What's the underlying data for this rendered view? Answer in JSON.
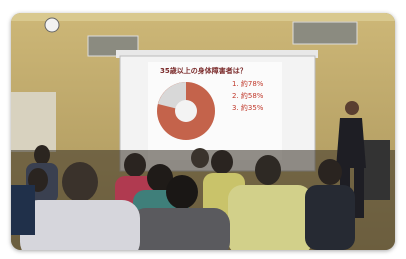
{
  "slide": {
    "title": "35歳以上の身体障害者は？",
    "options": [
      "1. 約78%",
      "2. 約58%",
      "3. 約35%"
    ]
  }
}
